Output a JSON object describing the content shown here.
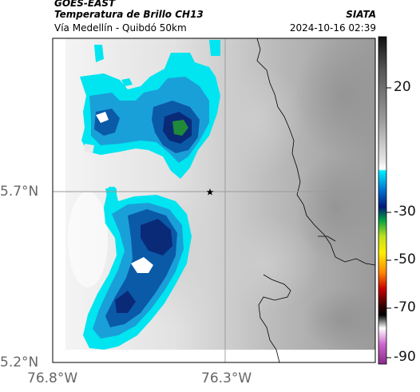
{
  "header": {
    "satellite": "GOES-EAST",
    "product": "Temperatura de Brillo CH13",
    "region": "Vía Medellín - Quibdó 50km",
    "source": "SIATA",
    "datetime": "2024-10-16 02:39"
  },
  "axes": {
    "lat_ticks": [
      "5.7°N",
      "5.2°N"
    ],
    "lon_ticks": [
      "76.8°W",
      "76.3°W"
    ]
  },
  "colorbar": {
    "ticks": [
      "20",
      "-30",
      "-50",
      "-70",
      "-90"
    ]
  },
  "colors": {
    "cyan": "#00e5f0",
    "mid_blue": "#1aa0d8",
    "deep_blue": "#0a5aa8",
    "navy": "#0a2a78",
    "green": "#1f8a3a"
  }
}
